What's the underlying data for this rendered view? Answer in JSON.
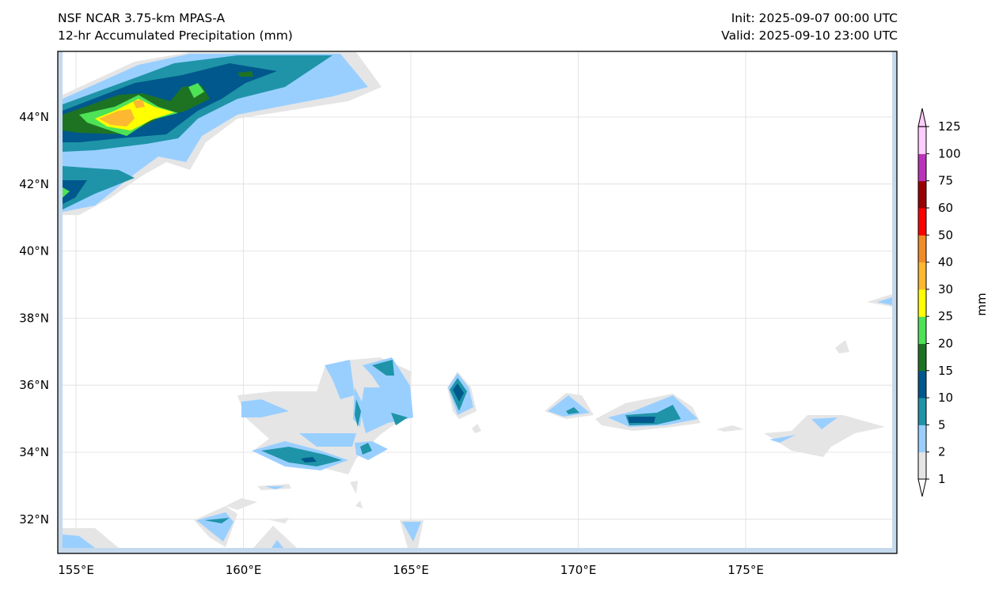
{
  "header": {
    "model": "NSF NCAR 3.75-km MPAS-A",
    "field": "12-hr Accumulated Precipitation (mm)",
    "init": "Init: 2025-09-07 00:00 UTC",
    "valid": "Valid: 2025-09-10 23:00 UTC"
  },
  "map": {
    "lon_ticks": [
      "155°E",
      "160°E",
      "165°E",
      "170°E",
      "175°E"
    ],
    "lat_ticks": [
      "44°N",
      "42°N",
      "40°N",
      "38°N",
      "36°N",
      "34°N",
      "32°N"
    ]
  },
  "colorbar": {
    "label": "mm",
    "levels": [
      "1",
      "2",
      "5",
      "10",
      "15",
      "20",
      "25",
      "30",
      "40",
      "50",
      "60",
      "75",
      "100",
      "125"
    ],
    "colors": [
      "#e5e5e5",
      "#99cfff",
      "#1f94a8",
      "#00588c",
      "#1e7323",
      "#4ee256",
      "#ffff00",
      "#fbb830",
      "#f08c28",
      "#ff0000",
      "#990000",
      "#bb33bb",
      "#ffccff"
    ]
  }
}
